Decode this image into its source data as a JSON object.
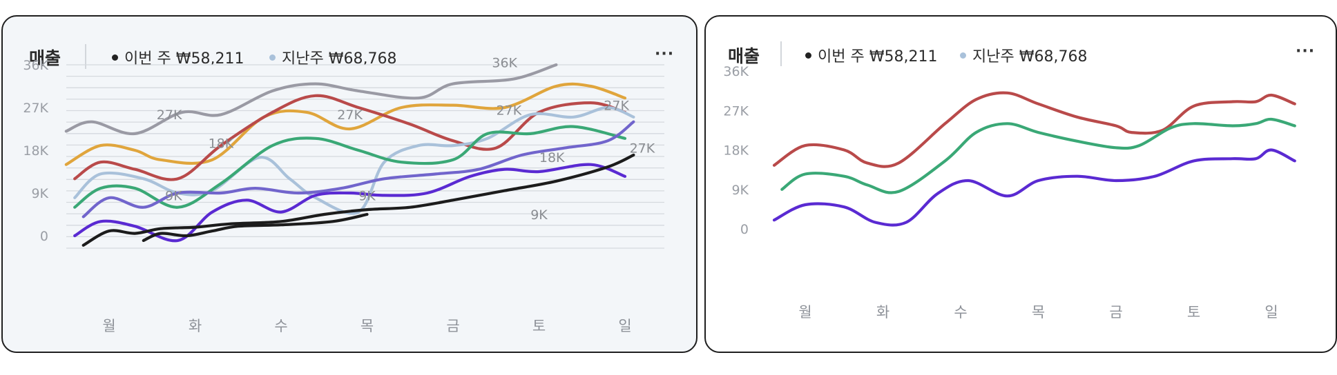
{
  "cards": [
    {
      "title": "매출",
      "legend": [
        {
          "label": "이번 주 ₩58,211",
          "color": "#222222"
        },
        {
          "label": "지난주 ₩68,768",
          "color": "#a9c1da"
        }
      ],
      "more_icon": "···"
    },
    {
      "title": "매출",
      "legend": [
        {
          "label": "이번 주 ₩58,211",
          "color": "#222222"
        },
        {
          "label": "지난주 ₩68,768",
          "color": "#a9c1da"
        }
      ],
      "more_icon": "···"
    }
  ],
  "chart_data": [
    {
      "type": "line",
      "title": "매출",
      "categories": [
        "월",
        "화",
        "수",
        "목",
        "금",
        "토",
        "일"
      ],
      "yticks": [
        "0",
        "9K",
        "18K",
        "27K",
        "36K"
      ],
      "ylim": [
        0,
        36
      ],
      "grid": true,
      "series": [
        {
          "color": "#9a9aa4",
          "x": [
            -0.5,
            -0.2,
            0.3,
            0.85,
            1.3,
            1.9,
            2.4,
            2.9,
            3.6,
            4.0,
            4.7,
            5.2
          ],
          "values": [
            22,
            24,
            21.5,
            26,
            25.5,
            30.5,
            32,
            30.5,
            29,
            32,
            33,
            36
          ]
        },
        {
          "color": "#e0a53c",
          "x": [
            -0.5,
            -0.1,
            0.3,
            0.6,
            1.2,
            1.8,
            2.3,
            2.8,
            3.4,
            4.0,
            4.6,
            5.2,
            5.6,
            6.0
          ],
          "values": [
            15,
            19,
            18,
            16,
            16,
            25,
            26,
            22.5,
            27,
            27.5,
            27,
            31.5,
            31.5,
            29
          ]
        },
        {
          "color": "#b94a4a",
          "x": [
            -0.4,
            -0.1,
            0.3,
            0.8,
            1.3,
            1.9,
            2.4,
            2.9,
            3.5,
            4.0,
            4.5,
            5.0,
            5.6,
            6.0
          ],
          "values": [
            12,
            15.5,
            14,
            12,
            19,
            26,
            29.5,
            27,
            23.5,
            20,
            18.5,
            26,
            28,
            26
          ]
        },
        {
          "color": "#a9c1da",
          "x": [
            -0.4,
            -0.1,
            0.4,
            0.8,
            1.2,
            1.75,
            2.1,
            2.4,
            2.9,
            3.2,
            3.6,
            4.0,
            4.4,
            4.9,
            5.4,
            5.8,
            6.1
          ],
          "values": [
            8,
            13,
            12,
            9,
            9.5,
            16.5,
            12,
            8,
            5,
            15.5,
            19,
            19,
            20.5,
            25.5,
            25,
            27,
            25
          ]
        },
        {
          "color": "#3aa876",
          "x": [
            -0.4,
            -0.1,
            0.3,
            0.8,
            1.3,
            1.9,
            2.4,
            2.9,
            3.4,
            4.0,
            4.4,
            4.9,
            5.4,
            6.0
          ],
          "values": [
            6,
            10,
            10,
            6,
            11,
            19,
            20.5,
            18,
            15.5,
            16,
            21.5,
            21.5,
            23,
            20.5
          ]
        },
        {
          "color": "#7165cc",
          "x": [
            -0.3,
            0.0,
            0.4,
            0.8,
            1.3,
            1.7,
            2.2,
            2.7,
            3.2,
            3.8,
            4.3,
            4.8,
            5.3,
            5.8,
            6.1
          ],
          "values": [
            4,
            8,
            6,
            9,
            9,
            10,
            9,
            10,
            12,
            13,
            14,
            17,
            18.5,
            20,
            24
          ]
        },
        {
          "color": "#5a2ad2",
          "x": [
            -0.4,
            -0.1,
            0.3,
            0.8,
            1.2,
            1.6,
            2.0,
            2.4,
            2.8,
            3.2,
            3.7,
            4.2,
            4.6,
            5.0,
            5.6,
            6.0
          ],
          "values": [
            0,
            3,
            2,
            -1,
            5,
            7.5,
            5,
            8.5,
            9,
            8.5,
            9,
            12.5,
            14,
            13.5,
            15,
            12.5
          ]
        },
        {
          "color": "#1c1c1c",
          "x": [
            -0.3,
            0.0,
            0.3,
            0.6,
            1.0,
            1.4,
            2.0,
            2.5,
            3.0,
            3.5,
            4.0,
            4.6,
            5.2,
            5.8,
            6.1
          ],
          "values": [
            -2,
            1,
            0.5,
            1.5,
            1.8,
            2.5,
            3,
            4.5,
            5.5,
            6,
            7.5,
            9.5,
            11.5,
            14.5,
            17
          ]
        },
        {
          "color": "#1c1c1c",
          "x": [
            0.4,
            0.6,
            0.9,
            1.2,
            1.5,
            2.0,
            2.6,
            3.0
          ],
          "values": [
            -1,
            0.5,
            0,
            1,
            2,
            2.3,
            3,
            4.5
          ]
        }
      ],
      "annotations": [
        {
          "text": "36K",
          "x": 4.6,
          "y": 35.5
        },
        {
          "text": "27K",
          "x": 0.7,
          "y": 24.5
        },
        {
          "text": "18K",
          "x": 1.3,
          "y": 18.5
        },
        {
          "text": "27K",
          "x": 2.8,
          "y": 24.5
        },
        {
          "text": "27K",
          "x": 4.65,
          "y": 25.5
        },
        {
          "text": "27K",
          "x": 5.9,
          "y": 26.5
        },
        {
          "text": "27K",
          "x": 6.2,
          "y": 17.5
        },
        {
          "text": "18K",
          "x": 5.15,
          "y": 15.5
        },
        {
          "text": "9K",
          "x": 0.75,
          "y": 7.5
        },
        {
          "text": "9K",
          "x": 3.0,
          "y": 7.5
        },
        {
          "text": "9K",
          "x": 5.0,
          "y": 3.5
        }
      ]
    },
    {
      "type": "line",
      "title": "매출",
      "categories": [
        "월",
        "화",
        "수",
        "목",
        "금",
        "토",
        "일"
      ],
      "yticks": [
        "0",
        "9K",
        "18K",
        "27K",
        "36K"
      ],
      "ylim": [
        0,
        36
      ],
      "grid": false,
      "series": [
        {
          "color": "#b94a4a",
          "x": [
            -0.4,
            0.0,
            0.5,
            0.8,
            1.2,
            1.8,
            2.2,
            2.6,
            3.0,
            3.5,
            4.0,
            4.2,
            4.6,
            5.0,
            5.5,
            5.8,
            6.0,
            6.3
          ],
          "values": [
            14.5,
            19,
            18,
            15,
            15,
            24,
            29.5,
            31,
            28.5,
            25.5,
            23.5,
            22,
            22.5,
            28,
            29,
            29,
            30.5,
            28.5
          ]
        },
        {
          "color": "#3aa876",
          "x": [
            -0.3,
            0.0,
            0.5,
            0.8,
            1.2,
            1.8,
            2.2,
            2.6,
            3.0,
            3.5,
            4.0,
            4.3,
            4.7,
            5.0,
            5.5,
            5.8,
            6.0,
            6.3
          ],
          "values": [
            9,
            12.5,
            12,
            10,
            8.5,
            15.5,
            22,
            24,
            22,
            20,
            18.5,
            19,
            23,
            24,
            23.5,
            24,
            25,
            23.5
          ]
        },
        {
          "color": "#5a2ad2",
          "x": [
            -0.4,
            0.0,
            0.5,
            0.9,
            1.3,
            1.7,
            2.1,
            2.6,
            3.0,
            3.5,
            4.0,
            4.5,
            5.0,
            5.5,
            5.8,
            6.0,
            6.3
          ],
          "values": [
            2,
            5.5,
            5,
            1.5,
            1.5,
            8,
            11,
            7.5,
            11,
            12,
            11,
            12,
            15.5,
            16,
            16,
            18,
            15.5
          ]
        }
      ],
      "annotations": []
    }
  ]
}
